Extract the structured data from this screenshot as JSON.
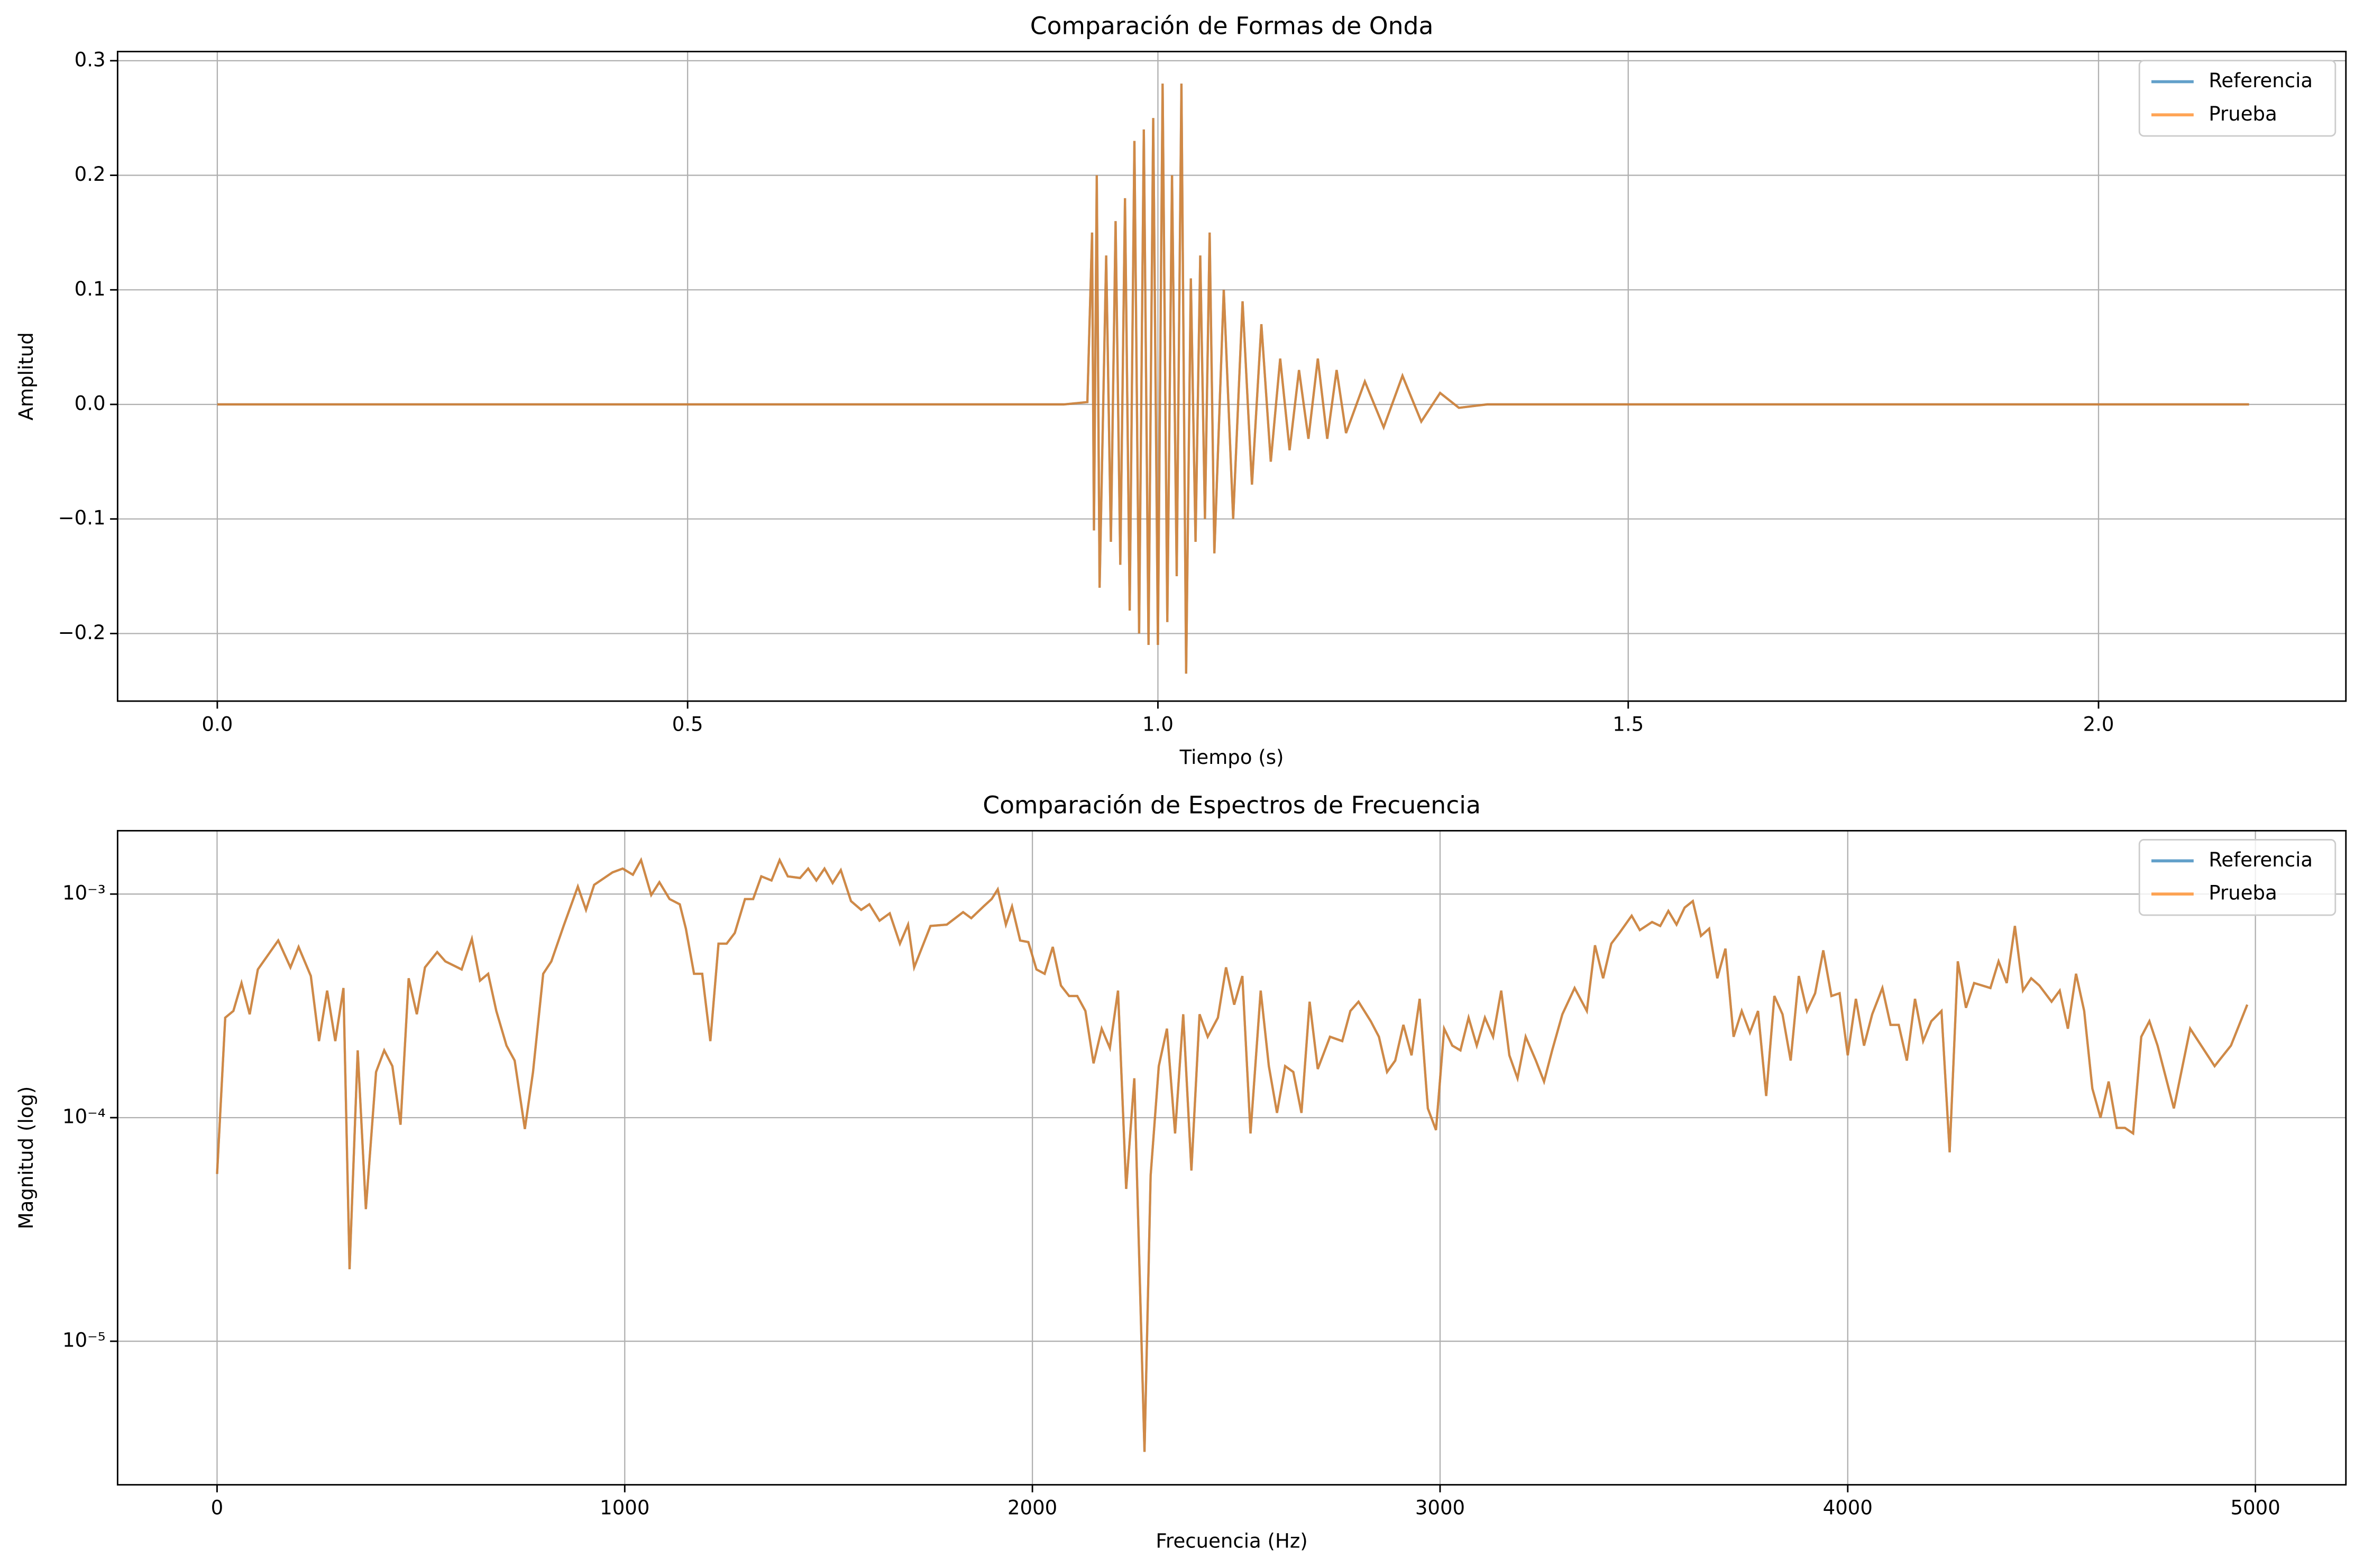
{
  "chart_data": [
    {
      "type": "line",
      "title": "Comparación de Formas de Onda",
      "xlabel": "Tiempo (s)",
      "ylabel": "Amplitud",
      "x": [
        0,
        0.5,
        0.9,
        0.925,
        0.93,
        0.932,
        0.935,
        0.938,
        0.945,
        0.95,
        0.955,
        0.96,
        0.965,
        0.97,
        0.975,
        0.98,
        0.985,
        0.99,
        0.995,
        1.0,
        1.005,
        1.01,
        1.015,
        1.02,
        1.025,
        1.03,
        1.035,
        1.04,
        1.045,
        1.05,
        1.055,
        1.06,
        1.07,
        1.08,
        1.09,
        1.1,
        1.11,
        1.12,
        1.13,
        1.14,
        1.15,
        1.16,
        1.17,
        1.18,
        1.19,
        1.2,
        1.22,
        1.24,
        1.26,
        1.28,
        1.3,
        1.32,
        1.35,
        1.6,
        2.16
      ],
      "series": [
        {
          "name": "Referencia",
          "color": "#1f77b4",
          "values": [
            0,
            0,
            0,
            0.002,
            0.15,
            -0.11,
            0.2,
            -0.16,
            0.13,
            -0.12,
            0.16,
            -0.14,
            0.18,
            -0.18,
            0.23,
            -0.2,
            0.24,
            -0.21,
            0.25,
            -0.21,
            0.28,
            -0.19,
            0.2,
            -0.15,
            0.28,
            -0.235,
            0.11,
            -0.12,
            0.13,
            -0.1,
            0.15,
            -0.13,
            0.1,
            -0.1,
            0.09,
            -0.07,
            0.07,
            -0.05,
            0.04,
            -0.04,
            0.03,
            -0.03,
            0.04,
            -0.03,
            0.03,
            -0.025,
            0.02,
            -0.02,
            0.025,
            -0.015,
            0.01,
            -0.003,
            0,
            0,
            0
          ]
        },
        {
          "name": "Prueba",
          "color": "#ff7f0e",
          "values": [
            0,
            0,
            0,
            0.002,
            0.15,
            -0.11,
            0.2,
            -0.16,
            0.13,
            -0.12,
            0.16,
            -0.14,
            0.18,
            -0.18,
            0.23,
            -0.2,
            0.24,
            -0.21,
            0.25,
            -0.21,
            0.28,
            -0.19,
            0.2,
            -0.15,
            0.28,
            -0.235,
            0.11,
            -0.12,
            0.13,
            -0.1,
            0.15,
            -0.13,
            0.1,
            -0.1,
            0.09,
            -0.07,
            0.07,
            -0.05,
            0.04,
            -0.04,
            0.03,
            -0.03,
            0.04,
            -0.03,
            0.03,
            -0.025,
            0.02,
            -0.02,
            0.025,
            -0.015,
            0.01,
            -0.003,
            0,
            0,
            0
          ]
        }
      ],
      "xlim": [
        -0.106,
        2.263
      ],
      "xticks": [
        {
          "value": 0,
          "label": "0.0"
        },
        0.5,
        {
          "value": 1,
          "label": "1.0"
        },
        1.5,
        {
          "value": 2,
          "label": "2.0"
        }
      ],
      "ylim": [
        -0.259,
        0.308
      ],
      "yticks": [
        {
          "value": -0.2,
          "label": "−0.2"
        },
        {
          "value": -0.1,
          "label": "−0.1"
        },
        {
          "value": 0,
          "label": "0.0"
        },
        0.1,
        0.2,
        0.3
      ],
      "grid": true,
      "legend": "upper right"
    },
    {
      "type": "line",
      "title": "Comparación de Espectros de Frecuencia",
      "xlabel": "Frecuencia (Hz)",
      "ylabel": "Magnitud (log)",
      "log_y": true,
      "x": [
        0,
        20,
        40,
        60,
        80,
        100,
        150,
        180,
        200,
        230,
        250,
        270,
        290,
        310,
        325,
        345,
        365,
        390,
        410,
        430,
        450,
        470,
        490,
        510,
        540,
        560,
        600,
        625,
        645,
        665,
        685,
        710,
        730,
        755,
        775,
        800,
        820,
        850,
        885,
        905,
        925,
        970,
        995,
        1020,
        1040,
        1065,
        1085,
        1110,
        1135,
        1150,
        1170,
        1190,
        1210,
        1230,
        1250,
        1270,
        1295,
        1315,
        1335,
        1360,
        1380,
        1400,
        1430,
        1450,
        1470,
        1490,
        1510,
        1530,
        1555,
        1580,
        1600,
        1625,
        1650,
        1675,
        1695,
        1710,
        1750,
        1790,
        1830,
        1850,
        1880,
        1900,
        1915,
        1935,
        1950,
        1970,
        1990,
        2010,
        2030,
        2050,
        2070,
        2090,
        2110,
        2130,
        2150,
        2170,
        2190,
        2210,
        2230,
        2250,
        2275,
        2290,
        2310,
        2330,
        2350,
        2370,
        2390,
        2410,
        2430,
        2455,
        2475,
        2495,
        2515,
        2535,
        2560,
        2580,
        2600,
        2620,
        2640,
        2660,
        2680,
        2700,
        2730,
        2760,
        2780,
        2800,
        2830,
        2850,
        2870,
        2890,
        2910,
        2930,
        2950,
        2970,
        2990,
        3010,
        3030,
        3050,
        3070,
        3090,
        3110,
        3130,
        3150,
        3170,
        3190,
        3210,
        3235,
        3255,
        3275,
        3300,
        3330,
        3360,
        3380,
        3400,
        3420,
        3440,
        3470,
        3490,
        3520,
        3540,
        3560,
        3580,
        3600,
        3620,
        3640,
        3660,
        3680,
        3700,
        3720,
        3740,
        3760,
        3780,
        3800,
        3820,
        3840,
        3860,
        3880,
        3900,
        3920,
        3940,
        3960,
        3980,
        4000,
        4020,
        4040,
        4060,
        4085,
        4105,
        4125,
        4145,
        4165,
        4185,
        4205,
        4230,
        4250,
        4270,
        4290,
        4310,
        4350,
        4370,
        4390,
        4410,
        4430,
        4450,
        4470,
        4500,
        4520,
        4540,
        4560,
        4580,
        4600,
        4620,
        4640,
        4660,
        4680,
        4700,
        4720,
        4740,
        4760,
        4800,
        4840,
        4900,
        4940,
        4980
      ],
      "series": [
        {
          "name": "Referencia",
          "color": "#1f77b4",
          "values": [
            5.6e-05,
            0.00028,
            0.0003,
            0.0004,
            0.00029,
            0.00046,
            0.00062,
            0.00047,
            0.00058,
            0.00043,
            0.00022,
            0.00037,
            0.00022,
            0.00038,
            2.1e-05,
            0.0002,
            3.9e-05,
            0.00016,
            0.0002,
            0.00017,
            9.3e-05,
            0.00042,
            0.00029,
            0.00047,
            0.00055,
            0.0005,
            0.00046,
            0.00063,
            0.00041,
            0.00044,
            0.0003,
            0.00021,
            0.00018,
            8.9e-05,
            0.00016,
            0.00044,
            0.0005,
            0.00072,
            0.00108,
            0.00085,
            0.0011,
            0.00125,
            0.0013,
            0.00122,
            0.00142,
            0.00099,
            0.00113,
            0.00095,
            0.0009,
            0.0007,
            0.00044,
            0.00044,
            0.00022,
            0.0006,
            0.0006,
            0.00067,
            0.00095,
            0.00095,
            0.0012,
            0.00115,
            0.00142,
            0.0012,
            0.00118,
            0.0013,
            0.00115,
            0.0013,
            0.00112,
            0.00128,
            0.00093,
            0.00085,
            0.0009,
            0.00076,
            0.00082,
            0.0006,
            0.00073,
            0.00047,
            0.00072,
            0.00073,
            0.00083,
            0.00078,
            0.00088,
            0.00095,
            0.00105,
            0.00073,
            0.00088,
            0.00062,
            0.00061,
            0.00046,
            0.00044,
            0.00058,
            0.00039,
            0.00035,
            0.00035,
            0.0003,
            0.000175,
            0.00025,
            0.000205,
            0.00037,
            4.8e-05,
            0.00015,
            3.2e-06,
            5.5e-05,
            0.00017,
            0.00025,
            8.5e-05,
            0.00029,
            5.8e-05,
            0.00029,
            0.00023,
            0.00028,
            0.00047,
            0.00032,
            0.00043,
            8.5e-05,
            0.00037,
            0.00017,
            0.000105,
            0.00017,
            0.00016,
            0.000105,
            0.00033,
            0.000165,
            0.00023,
            0.00022,
            0.0003,
            0.00033,
            0.00027,
            0.00023,
            0.00016,
            0.00018,
            0.00026,
            0.00019,
            0.00034,
            0.00011,
            8.8e-05,
            0.00025,
            0.00021,
            0.0002,
            0.00028,
            0.00021,
            0.00028,
            0.00023,
            0.00037,
            0.00019,
            0.00015,
            0.00023,
            0.00018,
            0.000145,
            0.0002,
            0.00029,
            0.00038,
            0.0003,
            0.00059,
            0.00042,
            0.0006,
            0.00067,
            0.0008,
            0.00069,
            0.00075,
            0.00072,
            0.00084,
            0.00073,
            0.00087,
            0.00093,
            0.00065,
            0.0007,
            0.00042,
            0.00057,
            0.00023,
            0.0003,
            0.00024,
            0.0003,
            0.000125,
            0.00035,
            0.00029,
            0.00018,
            0.00043,
            0.0003,
            0.00036,
            0.00056,
            0.00035,
            0.00036,
            0.00019,
            0.00034,
            0.00021,
            0.00029,
            0.00038,
            0.00026,
            0.00026,
            0.00018,
            0.00034,
            0.00022,
            0.00027,
            0.0003,
            7e-05,
            0.0005,
            0.00031,
            0.0004,
            0.00038,
            0.0005,
            0.0004,
            0.00072,
            0.00037,
            0.00042,
            0.00039,
            0.00033,
            0.00037,
            0.00025,
            0.00044,
            0.0003,
            0.000135,
            0.0001,
            0.000145,
            9e-05,
            9e-05,
            8.5e-05,
            0.00023,
            0.00027,
            0.00021,
            0.00011,
            0.00025,
            0.00017,
            0.00021,
            0.00032
          ]
        },
        {
          "name": "Prueba",
          "color": "#ff7f0e",
          "values": [
            5.6e-05,
            0.00028,
            0.0003,
            0.0004,
            0.00029,
            0.00046,
            0.00062,
            0.00047,
            0.00058,
            0.00043,
            0.00022,
            0.00037,
            0.00022,
            0.00038,
            2.1e-05,
            0.0002,
            3.9e-05,
            0.00016,
            0.0002,
            0.00017,
            9.3e-05,
            0.00042,
            0.00029,
            0.00047,
            0.00055,
            0.0005,
            0.00046,
            0.00063,
            0.00041,
            0.00044,
            0.0003,
            0.00021,
            0.00018,
            8.9e-05,
            0.00016,
            0.00044,
            0.0005,
            0.00072,
            0.00108,
            0.00085,
            0.0011,
            0.00125,
            0.0013,
            0.00122,
            0.00142,
            0.00099,
            0.00113,
            0.00095,
            0.0009,
            0.0007,
            0.00044,
            0.00044,
            0.00022,
            0.0006,
            0.0006,
            0.00067,
            0.00095,
            0.00095,
            0.0012,
            0.00115,
            0.00142,
            0.0012,
            0.00118,
            0.0013,
            0.00115,
            0.0013,
            0.00112,
            0.00128,
            0.00093,
            0.00085,
            0.0009,
            0.00076,
            0.00082,
            0.0006,
            0.00073,
            0.00047,
            0.00072,
            0.00073,
            0.00083,
            0.00078,
            0.00088,
            0.00095,
            0.00105,
            0.00073,
            0.00088,
            0.00062,
            0.00061,
            0.00046,
            0.00044,
            0.00058,
            0.00039,
            0.00035,
            0.00035,
            0.0003,
            0.000175,
            0.00025,
            0.000205,
            0.00037,
            4.8e-05,
            0.00015,
            3.2e-06,
            5.5e-05,
            0.00017,
            0.00025,
            8.5e-05,
            0.00029,
            5.8e-05,
            0.00029,
            0.00023,
            0.00028,
            0.00047,
            0.00032,
            0.00043,
            8.5e-05,
            0.00037,
            0.00017,
            0.000105,
            0.00017,
            0.00016,
            0.000105,
            0.00033,
            0.000165,
            0.00023,
            0.00022,
            0.0003,
            0.00033,
            0.00027,
            0.00023,
            0.00016,
            0.00018,
            0.00026,
            0.00019,
            0.00034,
            0.00011,
            8.8e-05,
            0.00025,
            0.00021,
            0.0002,
            0.00028,
            0.00021,
            0.00028,
            0.00023,
            0.00037,
            0.00019,
            0.00015,
            0.00023,
            0.00018,
            0.000145,
            0.0002,
            0.00029,
            0.00038,
            0.0003,
            0.00059,
            0.00042,
            0.0006,
            0.00067,
            0.0008,
            0.00069,
            0.00075,
            0.00072,
            0.00084,
            0.00073,
            0.00087,
            0.00093,
            0.00065,
            0.0007,
            0.00042,
            0.00057,
            0.00023,
            0.0003,
            0.00024,
            0.0003,
            0.000125,
            0.00035,
            0.00029,
            0.00018,
            0.00043,
            0.0003,
            0.00036,
            0.00056,
            0.00035,
            0.00036,
            0.00019,
            0.00034,
            0.00021,
            0.00029,
            0.00038,
            0.00026,
            0.00026,
            0.00018,
            0.00034,
            0.00022,
            0.00027,
            0.0003,
            7e-05,
            0.0005,
            0.00031,
            0.0004,
            0.00038,
            0.0005,
            0.0004,
            0.00072,
            0.00037,
            0.00042,
            0.00039,
            0.00033,
            0.00037,
            0.00025,
            0.00044,
            0.0003,
            0.000135,
            0.0001,
            0.000145,
            9e-05,
            9e-05,
            8.5e-05,
            0.00023,
            0.00027,
            0.00021,
            0.00011,
            0.00025,
            0.00017,
            0.00021,
            0.00032
          ]
        }
      ],
      "xlim": [
        -244,
        5222
      ],
      "xticks": [
        0,
        1000,
        2000,
        3000,
        4000,
        5000
      ],
      "ylim": [
        2.28e-06,
        0.00192
      ],
      "yticks": [
        {
          "value": 1e-05,
          "label": "10⁻⁵"
        },
        {
          "value": 0.0001,
          "label": "10⁻⁴"
        },
        {
          "value": 0.001,
          "label": "10⁻³"
        }
      ],
      "grid": true,
      "legend": "upper right"
    }
  ]
}
